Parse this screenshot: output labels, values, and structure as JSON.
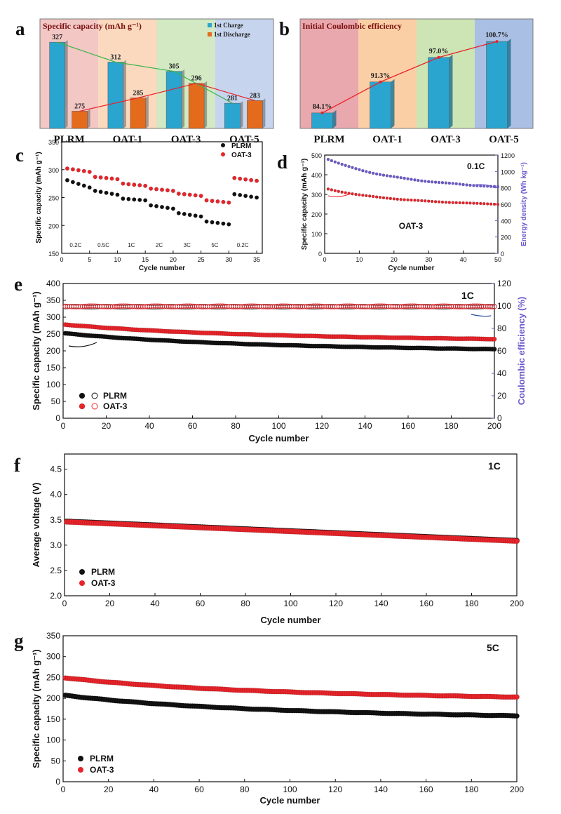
{
  "chart_data": [
    {
      "id": "a",
      "type": "bar",
      "panel_label": "a",
      "title": "Specific capacity (mAh g⁻¹)",
      "categories": [
        "PLRM",
        "OAT-1",
        "OAT-3",
        "OAT-5"
      ],
      "series": [
        {
          "name": "1st Charge",
          "values": [
            327,
            312,
            305,
            281
          ],
          "labels": [
            "327",
            "312",
            "305",
            "281"
          ],
          "color": "#2aa5cf"
        },
        {
          "name": "1st Discharge",
          "values": [
            275,
            285,
            296,
            283
          ],
          "labels": [
            "275",
            "285",
            "296",
            "283"
          ],
          "color": "#e46a1c"
        }
      ],
      "legend": [
        "1st Charge",
        "1st Discharge"
      ],
      "ylim": [
        262,
        335
      ],
      "bg_colors": [
        "#f2c7c4",
        "#fad9bf",
        "#d2e9c3",
        "#c7d4ee"
      ]
    },
    {
      "id": "b",
      "type": "bar",
      "panel_label": "b",
      "title": "Initial Coulombic efficiency",
      "categories": [
        "PLRM",
        "OAT-1",
        "OAT-3",
        "OAT-5"
      ],
      "values": [
        84.1,
        91.3,
        97.0,
        100.7
      ],
      "labels": [
        "84.1%",
        "91.3%",
        "97.0%",
        "100.7%"
      ],
      "ylim": [
        80.5,
        103
      ],
      "color": "#2aa5cf",
      "bg_colors": [
        "#e9a8ad",
        "#fbcfa6",
        "#cde4b4",
        "#aabfe4"
      ]
    },
    {
      "id": "c",
      "type": "scatter",
      "panel_label": "c",
      "xlabel": "Cycle number",
      "ylabel": "Specific capacity (mAh g⁻¹)",
      "xlim": [
        0,
        36
      ],
      "ylim": [
        150,
        350
      ],
      "xticks": [
        "0",
        "5",
        "10",
        "15",
        "20",
        "25",
        "30",
        "35"
      ],
      "yticks": [
        "150",
        "200",
        "250",
        "300",
        "350"
      ],
      "rate_labels": [
        "0.2C",
        "0.5C",
        "1C",
        "2C",
        "3C",
        "5C",
        "0.2C"
      ],
      "rate_label_x": [
        2.5,
        7.5,
        12.5,
        17.5,
        22.5,
        27.5,
        32.5
      ],
      "series": [
        {
          "name": "PLRM",
          "color": "#111111",
          "steps": [
            [
              1,
              5,
              281,
              268
            ],
            [
              6,
              10,
              262,
              255
            ],
            [
              11,
              15,
              248,
              245
            ],
            [
              16,
              20,
              236,
              230
            ],
            [
              21,
              25,
              222,
              216
            ],
            [
              26,
              30,
              207,
              202
            ],
            [
              31,
              35,
              256,
              250
            ]
          ]
        },
        {
          "name": "OAT-3",
          "color": "#e8242a",
          "steps": [
            [
              1,
              5,
              302,
              296
            ],
            [
              6,
              10,
              287,
              283
            ],
            [
              11,
              15,
              275,
              271
            ],
            [
              16,
              20,
              266,
              262
            ],
            [
              21,
              25,
              257,
              253
            ],
            [
              26,
              30,
              245,
              241
            ],
            [
              31,
              35,
              285,
              280
            ]
          ]
        }
      ]
    },
    {
      "id": "d",
      "type": "scatter",
      "panel_label": "d",
      "xlabel": "Cycle number",
      "ylabel": "Specific capacity (mAh g⁻¹)",
      "y2label": "Energy density (Wh kg⁻¹)",
      "xlim": [
        0,
        50
      ],
      "ylim": [
        0,
        500
      ],
      "y2lim": [
        0,
        1200
      ],
      "xticks": [
        "0",
        "10",
        "20",
        "30",
        "40",
        "50"
      ],
      "yticks": [
        "0",
        "100",
        "200",
        "300",
        "400",
        "500"
      ],
      "y2ticks": [
        "0",
        "200",
        "400",
        "600",
        "800",
        "1000",
        "1200"
      ],
      "annotation": "0.1C",
      "sample_label": "OAT-3",
      "series": [
        {
          "name": "Specific capacity",
          "color": "#e8242a",
          "axis": "left",
          "start": 327,
          "end": 250,
          "n": 50
        },
        {
          "name": "Energy density",
          "color": "#6a5acd",
          "axis": "right",
          "start": 1150,
          "end": 812,
          "n": 50
        }
      ]
    },
    {
      "id": "e",
      "type": "scatter",
      "panel_label": "e",
      "xlabel": "Cycle number",
      "ylabel": "Specific capacity (mAh g⁻¹)",
      "y2label": "Coulombic efficiency (%)",
      "xlim": [
        0,
        200
      ],
      "ylim": [
        0,
        400
      ],
      "y2lim": [
        0,
        120
      ],
      "xticks": [
        "0",
        "20",
        "40",
        "60",
        "80",
        "100",
        "120",
        "140",
        "160",
        "180",
        "200"
      ],
      "yticks": [
        "0",
        "50",
        "100",
        "150",
        "200",
        "250",
        "300",
        "350",
        "400"
      ],
      "y2ticks": [
        "0",
        "20",
        "40",
        "60",
        "80",
        "100",
        "120"
      ],
      "annotation": "1C",
      "legend": [
        "PLRM",
        "OAT-3"
      ],
      "series": [
        {
          "name": "PLRM capacity",
          "color": "#111111",
          "axis": "left",
          "start": 252,
          "end": 205,
          "n": 200
        },
        {
          "name": "OAT-3 capacity",
          "color": "#e8242a",
          "axis": "left",
          "start": 278,
          "end": 235,
          "n": 200
        },
        {
          "name": "PLRM efficiency",
          "color": "#555555",
          "axis": "right",
          "value": 99.3,
          "n": 200
        },
        {
          "name": "OAT-3 efficiency",
          "color": "#e8242a",
          "axis": "right",
          "value": 99.6,
          "n": 200
        }
      ]
    },
    {
      "id": "f",
      "type": "scatter",
      "panel_label": "f",
      "xlabel": "Cycle number",
      "ylabel": "Average voltage (V)",
      "xlim": [
        0,
        200
      ],
      "ylim": [
        2.0,
        4.8
      ],
      "xticks": [
        "0",
        "20",
        "40",
        "60",
        "80",
        "100",
        "120",
        "140",
        "160",
        "180",
        "200"
      ],
      "yticks": [
        "2.0",
        "2.5",
        "3.0",
        "3.5",
        "4.0",
        "4.5"
      ],
      "annotation": "1C",
      "legend": [
        "PLRM",
        "OAT-3"
      ],
      "series": [
        {
          "name": "PLRM",
          "color": "#111111",
          "start": 3.47,
          "end": 3.09,
          "n": 200
        },
        {
          "name": "OAT-3",
          "color": "#e8242a",
          "start": 3.46,
          "end": 3.08,
          "n": 200
        }
      ]
    },
    {
      "id": "g",
      "type": "scatter",
      "panel_label": "g",
      "xlabel": "Cycle number",
      "ylabel": "Specific capacity (mAh g⁻¹)",
      "xlim": [
        0,
        200
      ],
      "ylim": [
        0,
        350
      ],
      "xticks": [
        "0",
        "20",
        "40",
        "60",
        "80",
        "100",
        "120",
        "140",
        "160",
        "180",
        "200"
      ],
      "yticks": [
        "0",
        "50",
        "100",
        "150",
        "200",
        "250",
        "300",
        "350"
      ],
      "annotation": "5C",
      "legend": [
        "PLRM",
        "OAT-3"
      ],
      "series": [
        {
          "name": "PLRM",
          "color": "#111111",
          "start": 207,
          "end": 158,
          "n": 200
        },
        {
          "name": "OAT-3",
          "color": "#e8242a",
          "start": 249,
          "end": 203,
          "n": 200
        }
      ]
    }
  ]
}
